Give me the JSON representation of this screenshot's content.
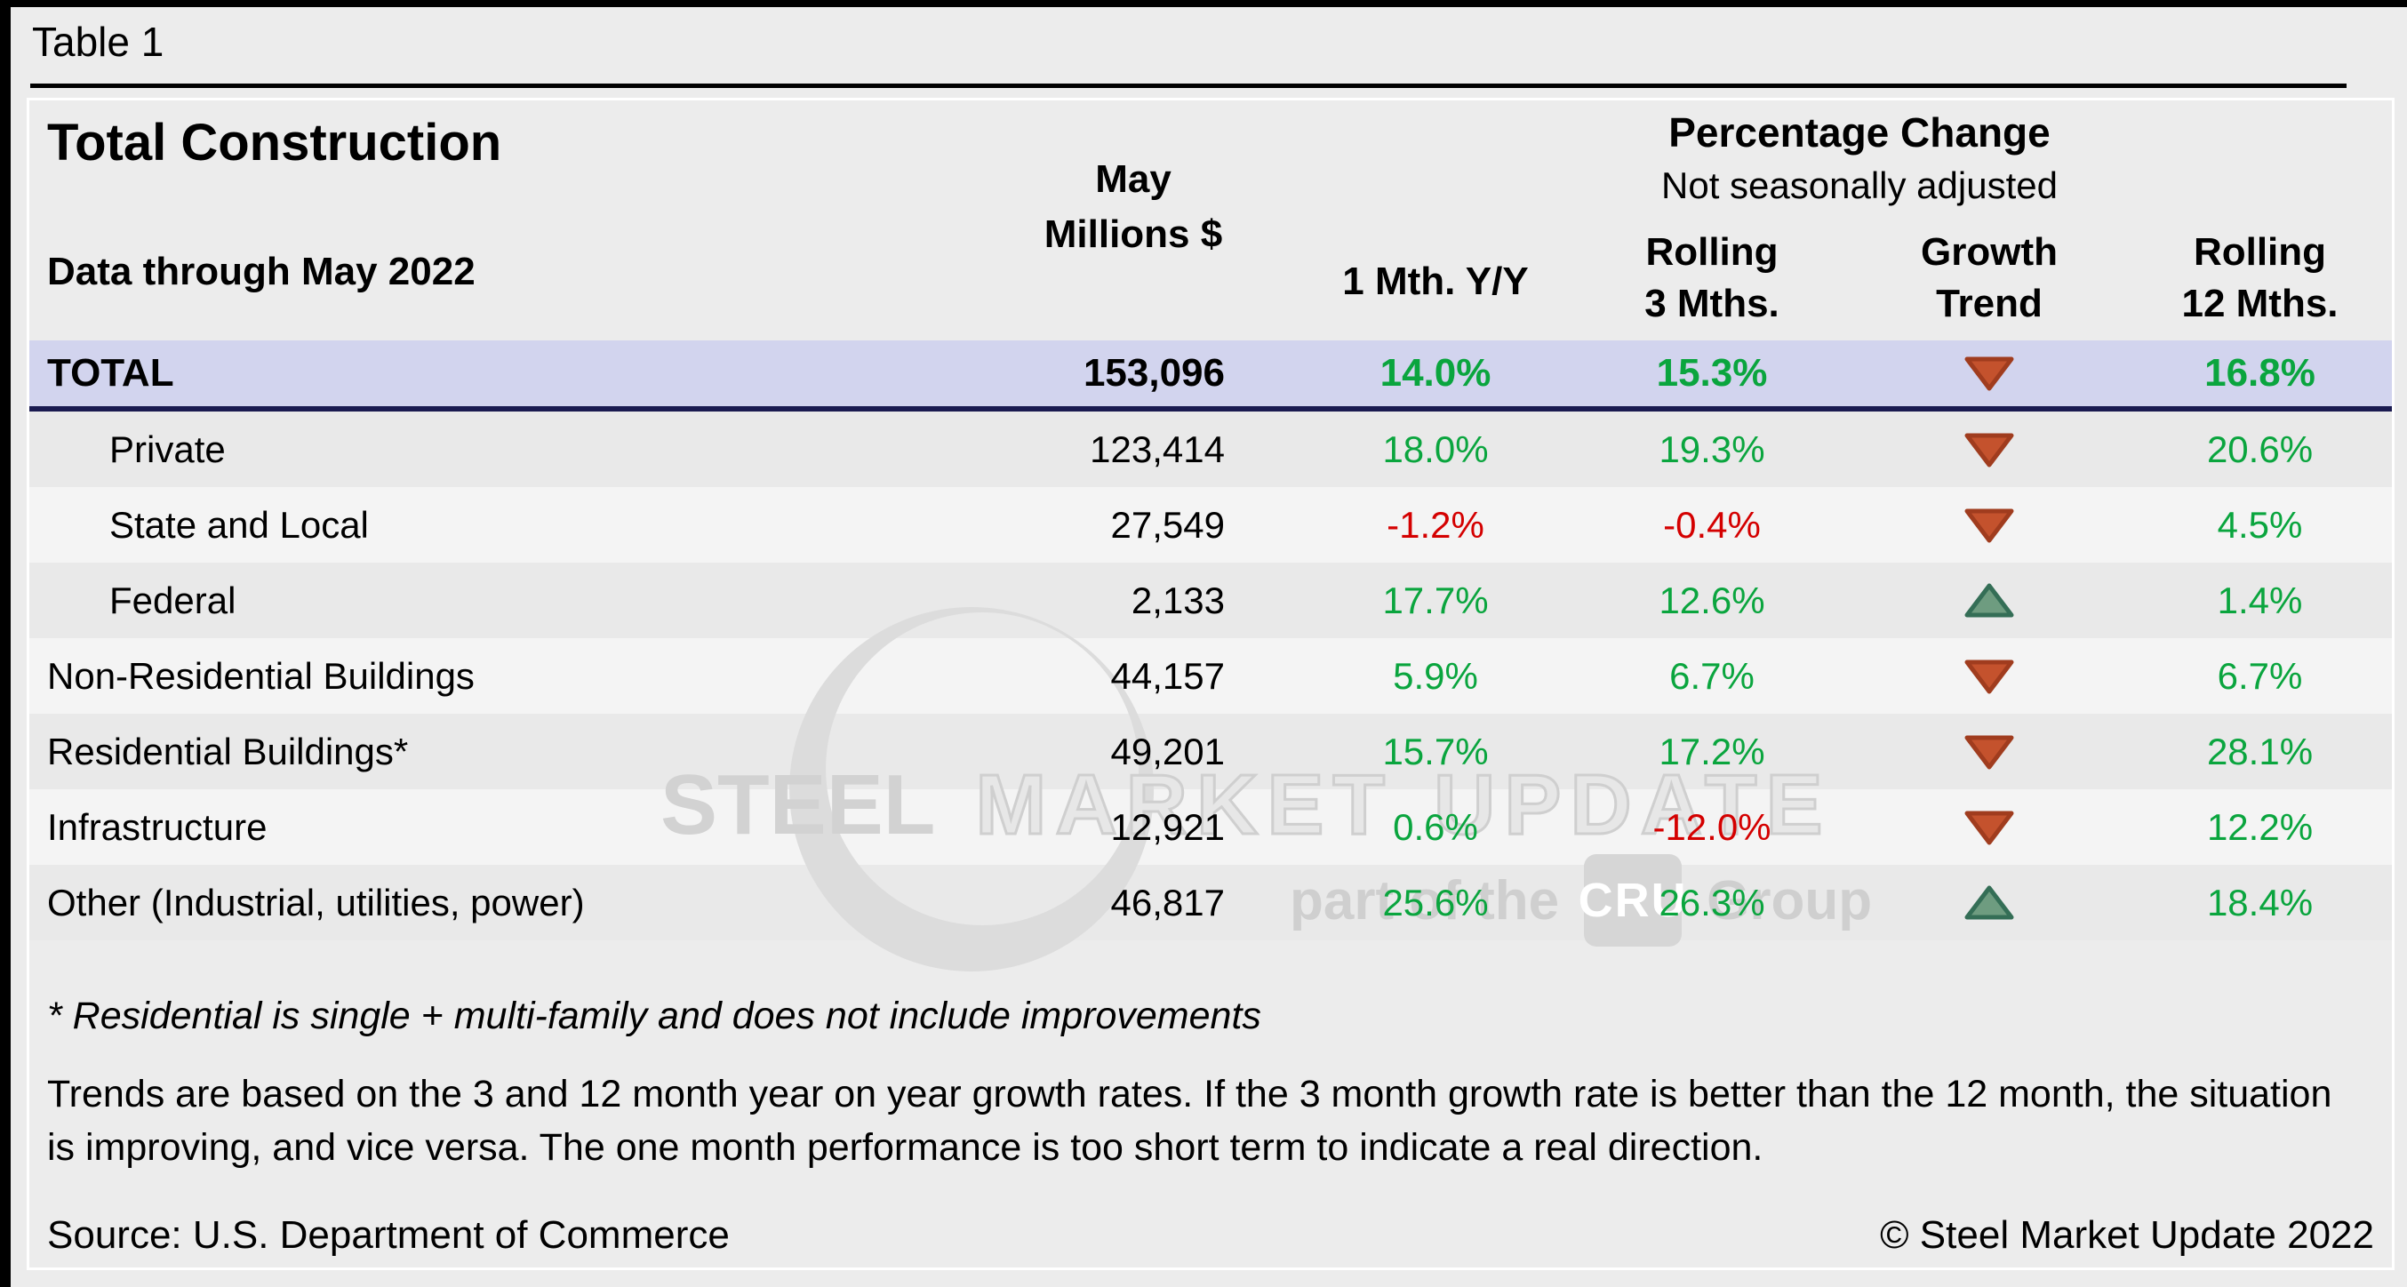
{
  "page": {
    "table_label": "Table 1",
    "source": "Source: U.S. Department of Commerce",
    "copyright": "© Steel Market Update 2022",
    "footnote_residential": "* Residential is single + multi-family and does not include improvements",
    "footnote_trends": "Trends are based on the 3 and 12 month year on year growth rates. If the 3 month growth rate is better than the 12 month, the situation is improving, and vice versa. The one month performance is too short term to indicate a real direction."
  },
  "header": {
    "may": "May",
    "millions": "Millions $",
    "one_month": "1 Mth. Y/Y",
    "pct_change_title": "Percentage Change",
    "pct_change_sub": "Not seasonally adjusted",
    "rolling3_l1": "Rolling",
    "rolling3_l2": "3 Mths.",
    "growth_l1": "Growth",
    "growth_l2": "Trend",
    "rolling12_l1": "Rolling",
    "rolling12_l2": "12 Mths."
  },
  "watermark": {
    "steel": "STEEL",
    "market": "MARKET",
    "update": "UPDATE",
    "part": "part of the",
    "cru": "CRU",
    "group": "Group"
  },
  "chart_data": {
    "type": "table",
    "title": "Total Construction",
    "subtitle": "Data through May 2022",
    "columns": [
      "May Millions $",
      "1 Mth. Y/Y",
      "Rolling 3 Mths.",
      "Growth Trend",
      "Rolling 12 Mths."
    ],
    "rows": [
      {
        "label": "TOTAL",
        "indent": false,
        "millions": "153,096",
        "m1": "14.0%",
        "r3": "15.3%",
        "trend": "down",
        "r12": "16.8%"
      },
      {
        "label": "Private",
        "indent": true,
        "millions": "123,414",
        "m1": "18.0%",
        "r3": "19.3%",
        "trend": "down",
        "r12": "20.6%"
      },
      {
        "label": "State and Local",
        "indent": true,
        "millions": "27,549",
        "m1": "-1.2%",
        "r3": "-0.4%",
        "trend": "down",
        "r12": "4.5%"
      },
      {
        "label": "Federal",
        "indent": true,
        "millions": "2,133",
        "m1": "17.7%",
        "r3": "12.6%",
        "trend": "up",
        "r12": "1.4%"
      },
      {
        "label": "Non-Residential Buildings",
        "indent": false,
        "millions": "44,157",
        "m1": "5.9%",
        "r3": "6.7%",
        "trend": "down",
        "r12": "6.7%"
      },
      {
        "label": "Residential Buildings*",
        "indent": false,
        "millions": "49,201",
        "m1": "15.7%",
        "r3": "17.2%",
        "trend": "down",
        "r12": "28.1%"
      },
      {
        "label": "Infrastructure",
        "indent": false,
        "millions": "12,921",
        "m1": "0.6%",
        "r3": "-12.0%",
        "trend": "down",
        "r12": "12.2%"
      },
      {
        "label": "Other (Industrial, utilities, power)",
        "indent": false,
        "millions": "46,817",
        "m1": "25.6%",
        "r3": "26.3%",
        "trend": "up",
        "r12": "18.4%"
      }
    ]
  },
  "colors": {
    "positive": "#0aa53e",
    "negative": "#d40000",
    "total_row_bg": "#d2d4ee",
    "total_row_border": "#1a1a50",
    "trend_down_fill": "#c4522d",
    "trend_down_edge": "#a03c1e",
    "trend_up_fill": "#6e9c80",
    "trend_up_edge": "#346e56"
  }
}
